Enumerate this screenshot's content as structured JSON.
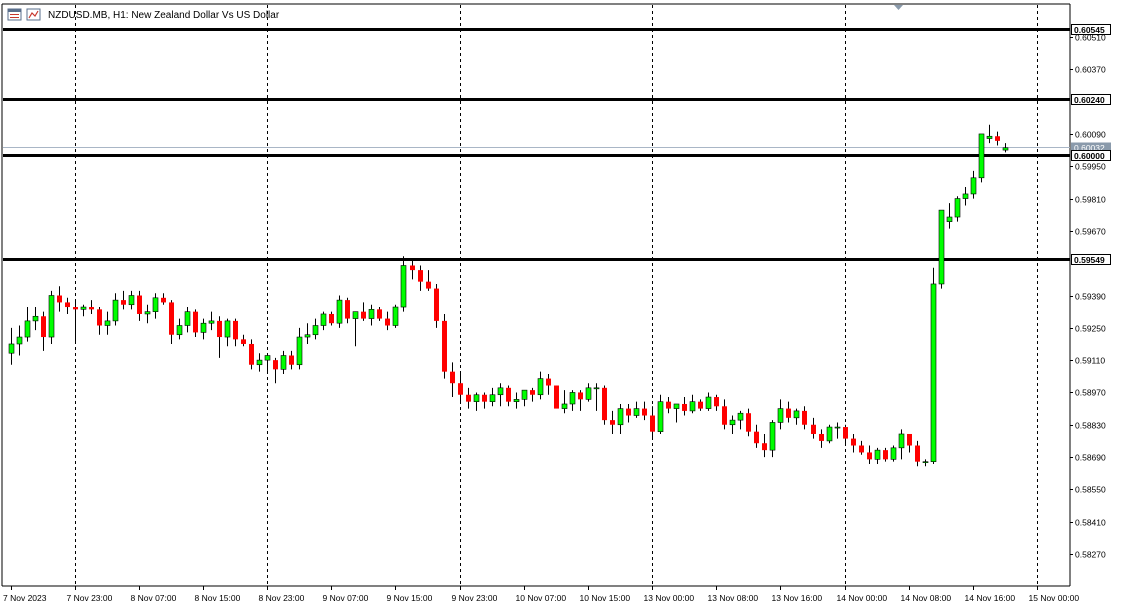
{
  "window": {
    "title": "NZDUSD.MB, H1:  New Zealand Dollar Vs US Dollar",
    "icons": [
      "chart-grid-icon",
      "chart-properties-icon"
    ]
  },
  "colors": {
    "bull_body": "#00ff00",
    "bear_body": "#ff0000",
    "wick": "#000000",
    "grid": "#000000",
    "hline": "#000000",
    "bid_line": "#a9b6c6",
    "bid_label_bg": "#8a9aab",
    "hline_label_bg": "#000000"
  },
  "chart_data": {
    "type": "candlestick",
    "symbol": "NZDUSD.MB",
    "timeframe": "H1",
    "description": "New Zealand Dollar Vs US Dollar",
    "grid": "dashed vertical",
    "price_axis": {
      "ticks": [
        "0.60510",
        "0.60370",
        "0.60090",
        "0.59950",
        "0.59810",
        "0.59670",
        "0.59390",
        "0.59250",
        "0.59110",
        "0.58970",
        "0.58830",
        "0.58690",
        "0.58550",
        "0.58410",
        "0.58270"
      ],
      "tick_values": [
        0.6051,
        0.6037,
        0.6009,
        0.5995,
        0.5981,
        0.5967,
        0.5939,
        0.5925,
        0.5911,
        0.5897,
        0.5883,
        0.5869,
        0.5855,
        0.5841,
        0.5827
      ]
    },
    "time_axis": {
      "labels": [
        "7 Nov 2023",
        "7 Nov 23:00",
        "8 Nov 07:00",
        "8 Nov 15:00",
        "8 Nov 23:00",
        "9 Nov 07:00",
        "9 Nov 15:00",
        "9 Nov 23:00",
        "10 Nov 07:00",
        "10 Nov 15:00",
        "13 Nov 00:00",
        "13 Nov 08:00",
        "13 Nov 16:00",
        "14 Nov 00:00",
        "14 Nov 08:00",
        "14 Nov 16:00",
        "15 Nov 00:00"
      ],
      "label_bar_index": [
        0,
        8,
        16,
        24,
        32,
        40,
        48,
        56,
        64,
        72,
        80,
        88,
        96,
        104,
        112,
        120,
        128
      ],
      "grid_bar_index": [
        8,
        32,
        56,
        80,
        104,
        128
      ]
    },
    "horizontal_lines": [
      {
        "label": "0.60545",
        "value": 0.60545
      },
      {
        "label": "0.60240",
        "value": 0.6024
      },
      {
        "label": "0.60000",
        "value": 0.6
      },
      {
        "label": "0.59549",
        "value": 0.59549
      }
    ],
    "bid": {
      "label": "0.60032",
      "value": 0.60032
    },
    "candles": [
      {
        "o": 0.5914,
        "h": 0.5925,
        "l": 0.5909,
        "c": 0.5918
      },
      {
        "o": 0.5918,
        "h": 0.5926,
        "l": 0.5913,
        "c": 0.5921
      },
      {
        "o": 0.5921,
        "h": 0.5934,
        "l": 0.5919,
        "c": 0.5928
      },
      {
        "o": 0.5928,
        "h": 0.5934,
        "l": 0.5924,
        "c": 0.593
      },
      {
        "o": 0.593,
        "h": 0.5932,
        "l": 0.5915,
        "c": 0.5921
      },
      {
        "o": 0.5921,
        "h": 0.5941,
        "l": 0.5918,
        "c": 0.5939
      },
      {
        "o": 0.5939,
        "h": 0.5943,
        "l": 0.5932,
        "c": 0.5936
      },
      {
        "o": 0.5936,
        "h": 0.5938,
        "l": 0.5931,
        "c": 0.5934
      },
      {
        "o": 0.5934,
        "h": 0.5937,
        "l": 0.5918,
        "c": 0.5933
      },
      {
        "o": 0.5933,
        "h": 0.5935,
        "l": 0.593,
        "c": 0.5934
      },
      {
        "o": 0.5934,
        "h": 0.5937,
        "l": 0.5931,
        "c": 0.5933
      },
      {
        "o": 0.5933,
        "h": 0.5934,
        "l": 0.5922,
        "c": 0.5926
      },
      {
        "o": 0.5926,
        "h": 0.5932,
        "l": 0.5922,
        "c": 0.5928
      },
      {
        "o": 0.5928,
        "h": 0.594,
        "l": 0.5926,
        "c": 0.5937
      },
      {
        "o": 0.5937,
        "h": 0.5941,
        "l": 0.5933,
        "c": 0.5935
      },
      {
        "o": 0.5935,
        "h": 0.5941,
        "l": 0.5933,
        "c": 0.5939
      },
      {
        "o": 0.5939,
        "h": 0.5941,
        "l": 0.5928,
        "c": 0.5931
      },
      {
        "o": 0.5931,
        "h": 0.5935,
        "l": 0.5927,
        "c": 0.5932
      },
      {
        "o": 0.5932,
        "h": 0.594,
        "l": 0.5929,
        "c": 0.5938
      },
      {
        "o": 0.5938,
        "h": 0.594,
        "l": 0.5935,
        "c": 0.5936
      },
      {
        "o": 0.5936,
        "h": 0.5937,
        "l": 0.5918,
        "c": 0.5922
      },
      {
        "o": 0.5922,
        "h": 0.5929,
        "l": 0.592,
        "c": 0.5926
      },
      {
        "o": 0.5926,
        "h": 0.5934,
        "l": 0.5923,
        "c": 0.5932
      },
      {
        "o": 0.5932,
        "h": 0.5933,
        "l": 0.5921,
        "c": 0.5923
      },
      {
        "o": 0.5923,
        "h": 0.5929,
        "l": 0.592,
        "c": 0.5927
      },
      {
        "o": 0.5927,
        "h": 0.5932,
        "l": 0.5924,
        "c": 0.5928
      },
      {
        "o": 0.5928,
        "h": 0.593,
        "l": 0.5912,
        "c": 0.5921
      },
      {
        "o": 0.5921,
        "h": 0.5929,
        "l": 0.5917,
        "c": 0.5928
      },
      {
        "o": 0.5928,
        "h": 0.5929,
        "l": 0.5917,
        "c": 0.592
      },
      {
        "o": 0.592,
        "h": 0.5922,
        "l": 0.5917,
        "c": 0.5918
      },
      {
        "o": 0.5918,
        "h": 0.592,
        "l": 0.5907,
        "c": 0.5909
      },
      {
        "o": 0.5909,
        "h": 0.5914,
        "l": 0.5906,
        "c": 0.5911
      },
      {
        "o": 0.5911,
        "h": 0.5914,
        "l": 0.5906,
        "c": 0.5913
      },
      {
        "o": 0.5911,
        "h": 0.5912,
        "l": 0.5901,
        "c": 0.5907
      },
      {
        "o": 0.5907,
        "h": 0.5915,
        "l": 0.5905,
        "c": 0.5913
      },
      {
        "o": 0.5913,
        "h": 0.5915,
        "l": 0.5907,
        "c": 0.5909
      },
      {
        "o": 0.5909,
        "h": 0.5925,
        "l": 0.5907,
        "c": 0.5921
      },
      {
        "o": 0.5921,
        "h": 0.5927,
        "l": 0.5918,
        "c": 0.5922
      },
      {
        "o": 0.5922,
        "h": 0.5929,
        "l": 0.592,
        "c": 0.5926
      },
      {
        "o": 0.5926,
        "h": 0.5932,
        "l": 0.5924,
        "c": 0.5931
      },
      {
        "o": 0.5931,
        "h": 0.5932,
        "l": 0.5926,
        "c": 0.5927
      },
      {
        "o": 0.5927,
        "h": 0.5939,
        "l": 0.5925,
        "c": 0.5937
      },
      {
        "o": 0.5937,
        "h": 0.5938,
        "l": 0.5927,
        "c": 0.5929
      },
      {
        "o": 0.5929,
        "h": 0.5932,
        "l": 0.5917,
        "c": 0.5932
      },
      {
        "o": 0.5932,
        "h": 0.5936,
        "l": 0.5928,
        "c": 0.5929
      },
      {
        "o": 0.5929,
        "h": 0.5935,
        "l": 0.5926,
        "c": 0.5933
      },
      {
        "o": 0.5933,
        "h": 0.5934,
        "l": 0.5928,
        "c": 0.5929
      },
      {
        "o": 0.5929,
        "h": 0.5932,
        "l": 0.5924,
        "c": 0.5926
      },
      {
        "o": 0.5926,
        "h": 0.5935,
        "l": 0.5925,
        "c": 0.5934
      },
      {
        "o": 0.5934,
        "h": 0.5956,
        "l": 0.5932,
        "c": 0.5952
      },
      {
        "o": 0.5952,
        "h": 0.5955,
        "l": 0.5946,
        "c": 0.595
      },
      {
        "o": 0.595,
        "h": 0.5952,
        "l": 0.5941,
        "c": 0.5945
      },
      {
        "o": 0.5945,
        "h": 0.595,
        "l": 0.5941,
        "c": 0.5942
      },
      {
        "o": 0.5942,
        "h": 0.5944,
        "l": 0.5925,
        "c": 0.5928
      },
      {
        "o": 0.5928,
        "h": 0.5931,
        "l": 0.5903,
        "c": 0.5906
      },
      {
        "o": 0.5906,
        "h": 0.591,
        "l": 0.5895,
        "c": 0.5901
      },
      {
        "o": 0.5901,
        "h": 0.5905,
        "l": 0.5893,
        "c": 0.5896
      },
      {
        "o": 0.5896,
        "h": 0.5899,
        "l": 0.589,
        "c": 0.5893
      },
      {
        "o": 0.5893,
        "h": 0.5897,
        "l": 0.5889,
        "c": 0.5896
      },
      {
        "o": 0.5896,
        "h": 0.5897,
        "l": 0.589,
        "c": 0.5893
      },
      {
        "o": 0.5893,
        "h": 0.5899,
        "l": 0.5891,
        "c": 0.5896
      },
      {
        "o": 0.5896,
        "h": 0.5901,
        "l": 0.5891,
        "c": 0.5899
      },
      {
        "o": 0.5899,
        "h": 0.59,
        "l": 0.5891,
        "c": 0.5893
      },
      {
        "o": 0.5893,
        "h": 0.5897,
        "l": 0.589,
        "c": 0.5894
      },
      {
        "o": 0.5894,
        "h": 0.5898,
        "l": 0.5891,
        "c": 0.5898
      },
      {
        "o": 0.5898,
        "h": 0.5899,
        "l": 0.5893,
        "c": 0.5896
      },
      {
        "o": 0.5896,
        "h": 0.5906,
        "l": 0.5894,
        "c": 0.5903
      },
      {
        "o": 0.5903,
        "h": 0.5905,
        "l": 0.5896,
        "c": 0.59
      },
      {
        "o": 0.59,
        "h": 0.59,
        "l": 0.5891,
        "c": 0.589
      },
      {
        "o": 0.589,
        "h": 0.5898,
        "l": 0.5888,
        "c": 0.5892
      },
      {
        "o": 0.5892,
        "h": 0.5898,
        "l": 0.5889,
        "c": 0.5897
      },
      {
        "o": 0.5897,
        "h": 0.5898,
        "l": 0.5889,
        "c": 0.5894
      },
      {
        "o": 0.5894,
        "h": 0.5901,
        "l": 0.5893,
        "c": 0.5899
      },
      {
        "o": 0.5899,
        "h": 0.5901,
        "l": 0.5889,
        "c": 0.5899
      },
      {
        "o": 0.5899,
        "h": 0.59,
        "l": 0.5883,
        "c": 0.5885
      },
      {
        "o": 0.5885,
        "h": 0.5889,
        "l": 0.5879,
        "c": 0.5883
      },
      {
        "o": 0.5883,
        "h": 0.5892,
        "l": 0.5879,
        "c": 0.589
      },
      {
        "o": 0.589,
        "h": 0.5892,
        "l": 0.5884,
        "c": 0.5887
      },
      {
        "o": 0.5887,
        "h": 0.5893,
        "l": 0.5886,
        "c": 0.589
      },
      {
        "o": 0.589,
        "h": 0.5893,
        "l": 0.5885,
        "c": 0.5887
      },
      {
        "o": 0.5887,
        "h": 0.5891,
        "l": 0.5877,
        "c": 0.588
      },
      {
        "o": 0.588,
        "h": 0.5896,
        "l": 0.5879,
        "c": 0.5893
      },
      {
        "o": 0.5893,
        "h": 0.5895,
        "l": 0.5888,
        "c": 0.589
      },
      {
        "o": 0.589,
        "h": 0.5892,
        "l": 0.5884,
        "c": 0.5892
      },
      {
        "o": 0.5892,
        "h": 0.5895,
        "l": 0.5887,
        "c": 0.5889
      },
      {
        "o": 0.5889,
        "h": 0.5896,
        "l": 0.5888,
        "c": 0.5893
      },
      {
        "o": 0.5893,
        "h": 0.5894,
        "l": 0.5889,
        "c": 0.589
      },
      {
        "o": 0.589,
        "h": 0.5897,
        "l": 0.5889,
        "c": 0.5895
      },
      {
        "o": 0.5895,
        "h": 0.5896,
        "l": 0.5889,
        "c": 0.5891
      },
      {
        "o": 0.5891,
        "h": 0.5894,
        "l": 0.5881,
        "c": 0.5883
      },
      {
        "o": 0.5883,
        "h": 0.5887,
        "l": 0.5879,
        "c": 0.5885
      },
      {
        "o": 0.5885,
        "h": 0.5889,
        "l": 0.5881,
        "c": 0.5888
      },
      {
        "o": 0.5888,
        "h": 0.589,
        "l": 0.5878,
        "c": 0.588
      },
      {
        "o": 0.588,
        "h": 0.5883,
        "l": 0.5873,
        "c": 0.5875
      },
      {
        "o": 0.5875,
        "h": 0.5879,
        "l": 0.5869,
        "c": 0.5872
      },
      {
        "o": 0.5872,
        "h": 0.5885,
        "l": 0.5869,
        "c": 0.5884
      },
      {
        "o": 0.5884,
        "h": 0.5894,
        "l": 0.5881,
        "c": 0.589
      },
      {
        "o": 0.589,
        "h": 0.5893,
        "l": 0.5884,
        "c": 0.5886
      },
      {
        "o": 0.5886,
        "h": 0.589,
        "l": 0.5883,
        "c": 0.5889
      },
      {
        "o": 0.5889,
        "h": 0.5891,
        "l": 0.5881,
        "c": 0.5883
      },
      {
        "o": 0.5883,
        "h": 0.5886,
        "l": 0.5877,
        "c": 0.5879
      },
      {
        "o": 0.5879,
        "h": 0.5881,
        "l": 0.5873,
        "c": 0.5876
      },
      {
        "o": 0.5876,
        "h": 0.5883,
        "l": 0.5875,
        "c": 0.5882
      },
      {
        "o": 0.5882,
        "h": 0.5884,
        "l": 0.5877,
        "c": 0.5882
      },
      {
        "o": 0.5882,
        "h": 0.5883,
        "l": 0.5875,
        "c": 0.5877
      },
      {
        "o": 0.5877,
        "h": 0.5879,
        "l": 0.5871,
        "c": 0.5874
      },
      {
        "o": 0.5874,
        "h": 0.5876,
        "l": 0.587,
        "c": 0.5871
      },
      {
        "o": 0.5871,
        "h": 0.5874,
        "l": 0.5866,
        "c": 0.5868
      },
      {
        "o": 0.5868,
        "h": 0.5873,
        "l": 0.5866,
        "c": 0.5872
      },
      {
        "o": 0.5872,
        "h": 0.5873,
        "l": 0.5867,
        "c": 0.5868
      },
      {
        "o": 0.5868,
        "h": 0.5874,
        "l": 0.5867,
        "c": 0.5873
      },
      {
        "o": 0.5873,
        "h": 0.5881,
        "l": 0.5868,
        "c": 0.5879
      },
      {
        "o": 0.5879,
        "h": 0.5879,
        "l": 0.5871,
        "c": 0.5874
      },
      {
        "o": 0.5874,
        "h": 0.5876,
        "l": 0.5865,
        "c": 0.5867
      },
      {
        "o": 0.5867,
        "h": 0.5868,
        "l": 0.5865,
        "c": 0.5867
      },
      {
        "o": 0.5867,
        "h": 0.5951,
        "l": 0.5866,
        "c": 0.5944
      },
      {
        "o": 0.5944,
        "h": 0.5975,
        "l": 0.5942,
        "c": 0.5976
      },
      {
        "o": 0.5971,
        "h": 0.5979,
        "l": 0.5968,
        "c": 0.5973
      },
      {
        "o": 0.5973,
        "h": 0.5982,
        "l": 0.5971,
        "c": 0.5981
      },
      {
        "o": 0.5981,
        "h": 0.5986,
        "l": 0.5978,
        "c": 0.5983
      },
      {
        "o": 0.5983,
        "h": 0.5993,
        "l": 0.5981,
        "c": 0.599
      },
      {
        "o": 0.599,
        "h": 0.6009,
        "l": 0.5988,
        "c": 0.6009
      },
      {
        "o": 0.6007,
        "h": 0.6013,
        "l": 0.6005,
        "c": 0.6008
      },
      {
        "o": 0.6008,
        "h": 0.601,
        "l": 0.6004,
        "c": 0.6006
      },
      {
        "o": 0.6002,
        "h": 0.6005,
        "l": 0.6001,
        "c": 0.6003
      }
    ]
  }
}
